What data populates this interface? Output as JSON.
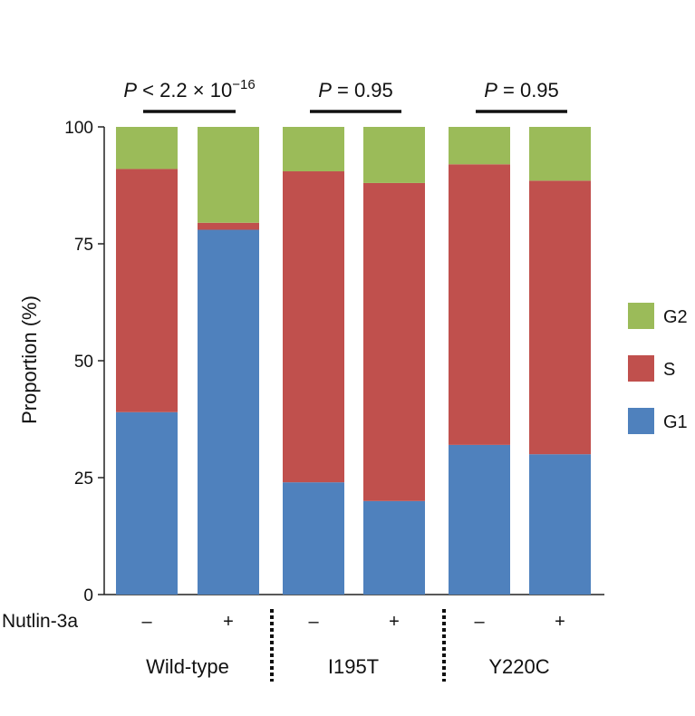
{
  "chart_data": {
    "type": "stacked-bar",
    "ylabel": "Proportion (%)",
    "ylim": [
      0,
      100
    ],
    "yticks": [
      "0",
      "25",
      "50",
      "75",
      "100"
    ],
    "row_label": "Nutlin-3a",
    "groups": [
      {
        "name": "Wild-type",
        "pvalue": {
          "prefix": "P",
          "text": " < 2.2 × 10",
          "exponent": "−16"
        }
      },
      {
        "name": "I195T",
        "pvalue": {
          "prefix": "P",
          "text": " = 0.95",
          "exponent": ""
        }
      },
      {
        "name": "Y220C",
        "pvalue": {
          "prefix": "P",
          "text": " = 0.95",
          "exponent": ""
        }
      }
    ],
    "categories": [
      "Wild-type −",
      "Wild-type +",
      "I195T −",
      "I195T +",
      "Y220C −",
      "Y220C +"
    ],
    "treatment": [
      "–",
      "+",
      "–",
      "+",
      "–",
      "+"
    ],
    "series": [
      {
        "name": "G1",
        "color": "#4f81bd",
        "values": [
          39,
          78,
          24,
          20,
          32,
          30
        ]
      },
      {
        "name": "S",
        "color": "#c0504d",
        "values": [
          52,
          1.5,
          66.5,
          68,
          60,
          58.5
        ]
      },
      {
        "name": "G2",
        "color": "#9bbb59",
        "values": [
          9,
          20.5,
          9.5,
          12,
          8,
          11.5
        ]
      }
    ],
    "legend": [
      "G2",
      "S",
      "G1"
    ]
  }
}
